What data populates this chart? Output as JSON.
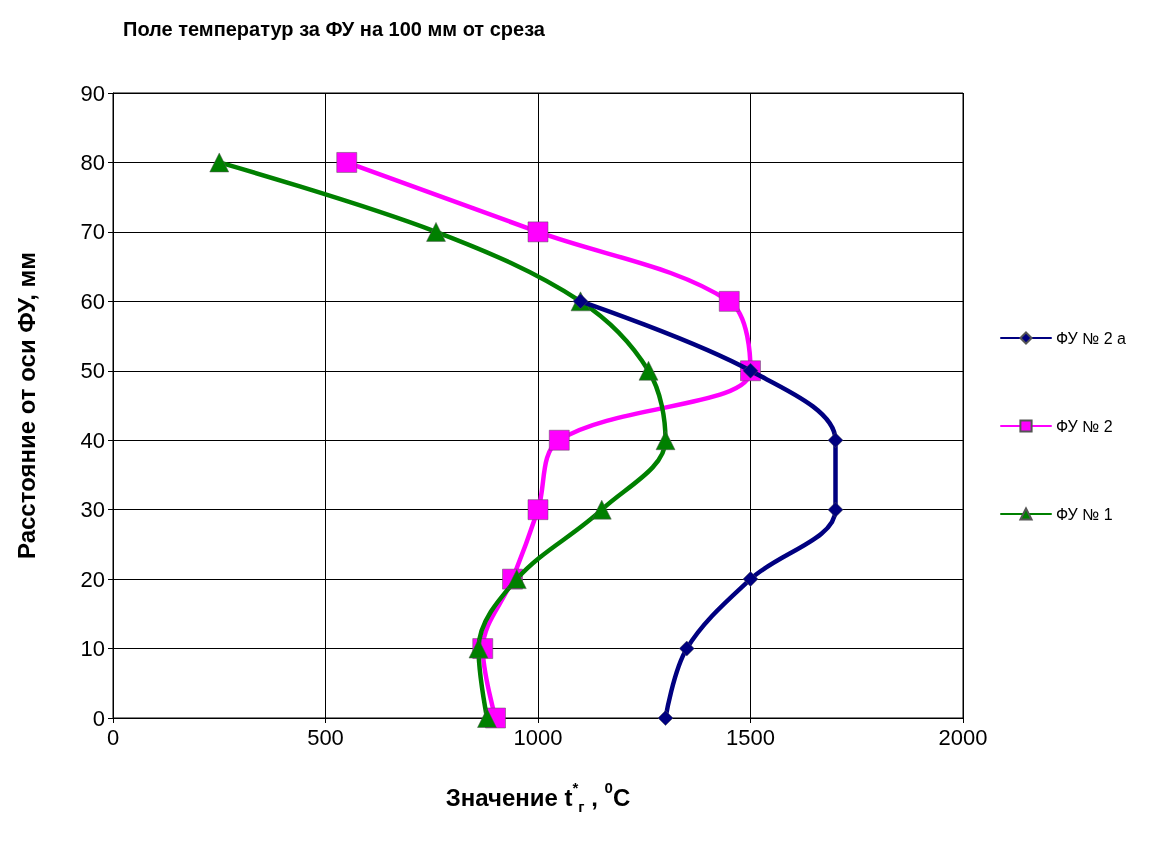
{
  "chart_data": {
    "type": "line",
    "title": "Поле температур за ФУ на 100 мм от среза",
    "xlabel": "Значение t$^{*}$$_{г}$ , $^{0}$С",
    "ylabel": "Расстояние от оси ФУ, мм",
    "xlim": [
      0,
      2000
    ],
    "xticks": [
      0,
      500,
      1000,
      1500,
      2000
    ],
    "ylim": [
      0,
      90
    ],
    "yticks": [
      0,
      10,
      20,
      30,
      40,
      50,
      60,
      70,
      80,
      90
    ],
    "grid": true,
    "legend": "right",
    "line_style": "solid",
    "series": [
      {
        "name": "ФУ № 2 а",
        "color": "#000080",
        "marker": "diamond",
        "x": [
          1300,
          1350,
          1500,
          1700,
          1700,
          1500,
          1100
        ],
        "values": [
          0,
          10,
          20,
          30,
          40,
          50,
          60
        ]
      },
      {
        "name": "ФУ № 2",
        "color": "#ff00ff",
        "marker": "square",
        "x": [
          900,
          870,
          940,
          1000,
          1050,
          1500,
          1450,
          1000,
          550
        ],
        "values": [
          0,
          10,
          20,
          30,
          40,
          50,
          60,
          70,
          80
        ]
      },
      {
        "name": "ФУ № 1",
        "color": "#008000",
        "marker": "triangle",
        "x": [
          880,
          860,
          950,
          1150,
          1300,
          1260,
          1100,
          760,
          250
        ],
        "values": [
          0,
          10,
          20,
          30,
          40,
          50,
          60,
          70,
          80
        ]
      }
    ]
  }
}
